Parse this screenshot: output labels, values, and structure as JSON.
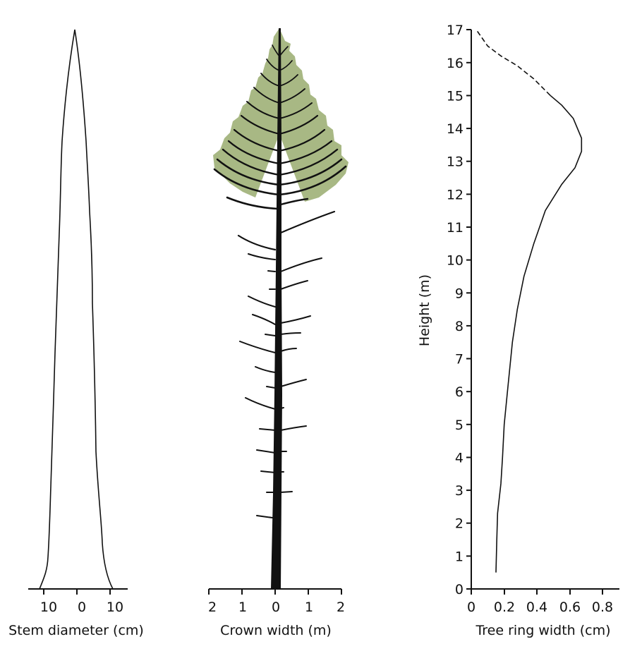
{
  "chart_data": [
    {
      "type": "line",
      "panel": "left",
      "title": "",
      "xlabel": "Stem diameter (cm)",
      "ylabel": "",
      "x_ticks": [
        "10",
        "0",
        "10"
      ],
      "description": "Stem profile outline (radius each side vs height), tapering from ~11 cm radius at base to 0 at the top (~17 m)",
      "series": [
        {
          "name": "Stem profile",
          "height_m": [
            0,
            0.5,
            1,
            2,
            4,
            6,
            8,
            10,
            12,
            14,
            15,
            16,
            17
          ],
          "radius_cm": [
            11,
            8.5,
            7,
            6.8,
            6,
            5.5,
            5,
            4.6,
            4,
            3.2,
            2.4,
            1.5,
            0
          ]
        }
      ]
    },
    {
      "type": "diagram",
      "panel": "middle",
      "xlabel": "Crown width (m)",
      "x_ticks": [
        "2",
        "1",
        "0",
        "1",
        "2"
      ],
      "description": "Tree crown illustration: green foliated crown from ~12 to 17 m with branch whorls, dead branches below",
      "foliage_color": "#a8b884"
    },
    {
      "type": "line",
      "panel": "right",
      "title": "",
      "xlabel": "Tree ring width (cm)",
      "ylabel": "Height (m)",
      "x_ticks": [
        "0",
        "0.2",
        "0.4",
        "0.6",
        "0.8"
      ],
      "y_ticks": [
        "0",
        "1",
        "2",
        "3",
        "4",
        "5",
        "6",
        "7",
        "8",
        "9",
        "10",
        "11",
        "12",
        "13",
        "14",
        "15",
        "16",
        "17"
      ],
      "xlim": [
        0,
        0.9
      ],
      "ylim": [
        0,
        17
      ],
      "series": [
        {
          "name": "Ring width (solid)",
          "style": "solid",
          "x": [
            0.15,
            0.155,
            0.16,
            0.18,
            0.19,
            0.2,
            0.22,
            0.25,
            0.28,
            0.32,
            0.38,
            0.45,
            0.55,
            0.63,
            0.67,
            0.67,
            0.62,
            0.55,
            0.48
          ],
          "y": [
            0.5,
            1.5,
            2.3,
            3.2,
            4,
            5,
            6,
            7.5,
            8.5,
            9.5,
            10.5,
            11.5,
            12.3,
            12.8,
            13.3,
            13.7,
            14.3,
            14.7,
            15
          ]
        },
        {
          "name": "Ring width (dashed, extrapolated)",
          "style": "dashed",
          "x": [
            0.48,
            0.38,
            0.28,
            0.18,
            0.1,
            0.03
          ],
          "y": [
            15,
            15.5,
            15.9,
            16.2,
            16.5,
            17
          ]
        }
      ]
    }
  ],
  "labels": {
    "left_xlabel": "Stem diameter (cm)",
    "middle_xlabel": "Crown width (m)",
    "right_xlabel": "Tree ring width (cm)",
    "right_ylabel": "Height (m)",
    "left_ticks": [
      "10",
      "0",
      "10"
    ],
    "middle_ticks": [
      "2",
      "1",
      "0",
      "1",
      "2"
    ],
    "right_xticks": [
      "0",
      "0.2",
      "0.4",
      "0.6",
      "0.8"
    ],
    "right_yticks": [
      "0",
      "1",
      "2",
      "3",
      "4",
      "5",
      "6",
      "7",
      "8",
      "9",
      "10",
      "11",
      "12",
      "13",
      "14",
      "15",
      "16",
      "17"
    ]
  },
  "colors": {
    "foliage": "#a8b884",
    "ink": "#111111"
  }
}
